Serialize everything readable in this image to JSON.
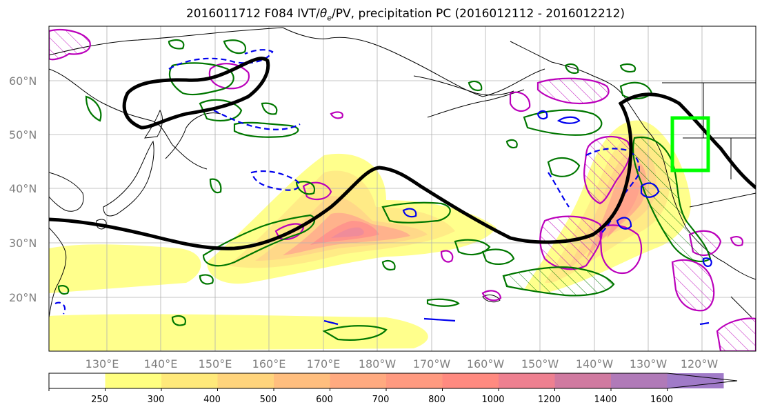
{
  "title": {
    "prefix": "2016011712 F084 IVT/",
    "theta": "θ",
    "theta_sub": "e",
    "suffix": "/PV, precipitation PC (2016012112 - 2016012212)"
  },
  "lat_labels": [
    "60°N",
    "50°N",
    "40°N",
    "30°N",
    "20°N"
  ],
  "lon_labels": [
    "130°E",
    "140°E",
    "150°E",
    "160°E",
    "170°E",
    "180°W",
    "170°W",
    "160°W",
    "150°W",
    "140°W",
    "130°W",
    "120°W"
  ],
  "colorbar": {
    "ticks": [
      "250",
      "300",
      "400",
      "500",
      "600",
      "700",
      "800",
      "1000",
      "1200",
      "1400",
      "1600"
    ],
    "colors": [
      "#ffffff",
      "#ffff80",
      "#ffe97a",
      "#ffd47c",
      "#ffbe7e",
      "#ffaa80",
      "#ff9a80",
      "#ff8a80",
      "#ee8090",
      "#d07aa0",
      "#b07ab8",
      "#a07ac8"
    ]
  },
  "colors": {
    "ivt_fill": "#ffd37a",
    "theta_e_contour": "#000000",
    "pv_contour": "#0000ee",
    "precip_pos": "#007700",
    "precip_neg": "#bb00bb",
    "target_box": "#00ff00"
  }
}
